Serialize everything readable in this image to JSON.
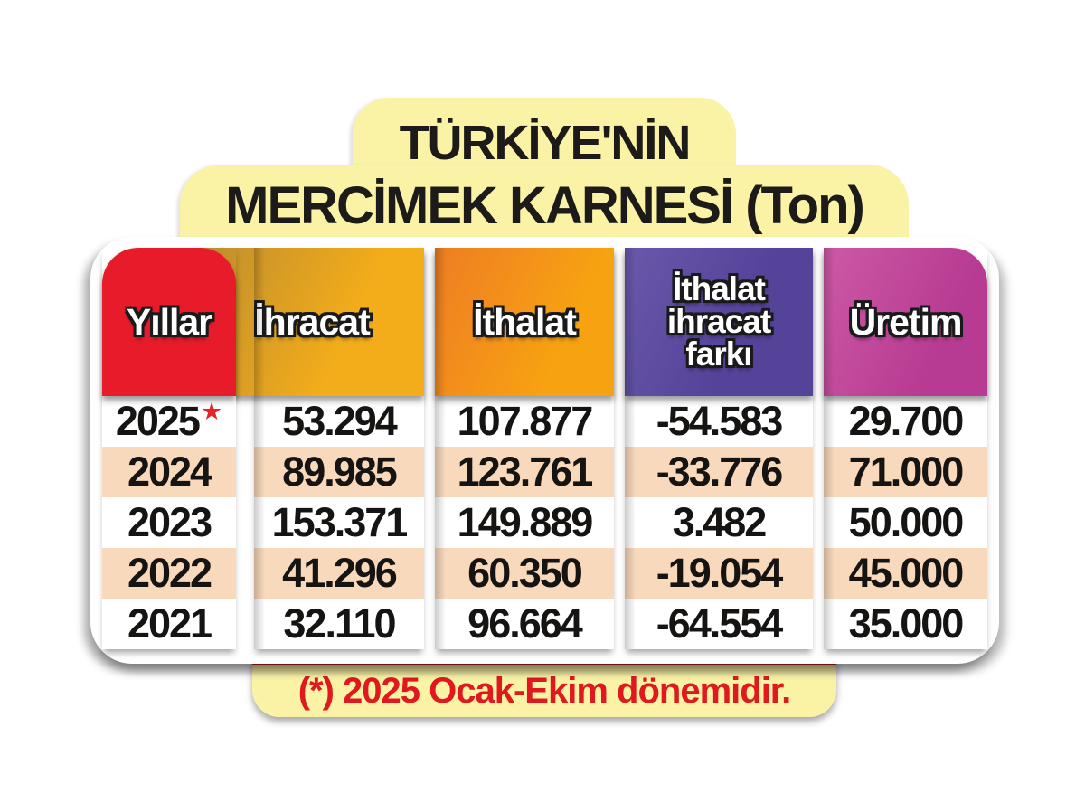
{
  "title": {
    "line1": "TÜRKİYE'NİN",
    "line2": "MERCİMEK KARNESİ (Ton)"
  },
  "table": {
    "columns": [
      {
        "key": "year",
        "label": "Yıllar"
      },
      {
        "key": "ihracat",
        "label": "İhracat"
      },
      {
        "key": "ithalat",
        "label": "İthalat"
      },
      {
        "key": "fark",
        "label": "İthalat ihracat farkı",
        "lines": [
          "İthalat",
          "ihracat",
          "farkı"
        ]
      },
      {
        "key": "uretim",
        "label": "Üretim"
      }
    ],
    "rows": [
      {
        "year": "2025",
        "star": "★",
        "ihracat": "53.294",
        "ithalat": "107.877",
        "fark": "-54.583",
        "uretim": "29.700"
      },
      {
        "year": "2024",
        "ihracat": "89.985",
        "ithalat": "123.761",
        "fark": "-33.776",
        "uretim": "71.000"
      },
      {
        "year": "2023",
        "ihracat": "153.371",
        "ithalat": "149.889",
        "fark": "3.482",
        "uretim": "50.000"
      },
      {
        "year": "2022",
        "ihracat": "41.296",
        "ithalat": "60.350",
        "fark": "-19.054",
        "uretim": "45.000"
      },
      {
        "year": "2021",
        "ihracat": "32.110",
        "ithalat": "96.664",
        "fark": "-64.554",
        "uretim": "35.000"
      }
    ]
  },
  "footnote": "(*) 2025 Ocak-Ekim dönemidir.",
  "chart_data": {
    "type": "table",
    "title": "TÜRKİYE'NİN MERCİMEK KARNESİ (Ton)",
    "columns": [
      "Yıllar",
      "İhracat",
      "İthalat",
      "İthalat ihracat farkı",
      "Üretim"
    ],
    "unit": "Ton",
    "rows": [
      {
        "yil": 2025,
        "ihracat": 53294,
        "ithalat": 107877,
        "fark": -54583,
        "uretim": 29700,
        "not": "2025 Ocak-Ekim dönemi"
      },
      {
        "yil": 2024,
        "ihracat": 89985,
        "ithalat": 123761,
        "fark": -33776,
        "uretim": 71000
      },
      {
        "yil": 2023,
        "ihracat": 153371,
        "ithalat": 149889,
        "fark": 3482,
        "uretim": 50000
      },
      {
        "yil": 2022,
        "ihracat": 41296,
        "ithalat": 60350,
        "fark": -19054,
        "uretim": 45000
      },
      {
        "yil": 2021,
        "ihracat": 32110,
        "ithalat": 96664,
        "fark": -64554,
        "uretim": 35000
      }
    ],
    "footnote": "(*) 2025 Ocak-Ekim dönemidir."
  },
  "colors": {
    "banner_yellow": "#faf3a6",
    "card_white": "#ffffff",
    "row_alt_peach": "#f8d9bc",
    "red": "#e81b2b",
    "gold_from": "#bd8d2e",
    "gold_to": "#f4ad1a",
    "orange_from": "#ee7d24",
    "orange_to": "#f7a211",
    "purple_from": "#6a58ab",
    "purple_to": "#55439a",
    "magenta_from": "#cd59a6",
    "magenta_to": "#b73b92",
    "footnote_red": "#e0191f",
    "star_red": "#e42528",
    "text_black": "#161412"
  }
}
